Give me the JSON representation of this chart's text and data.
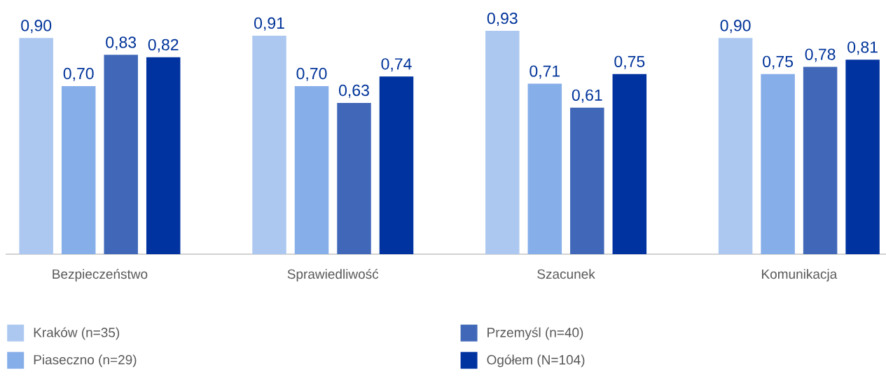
{
  "chart_data": {
    "type": "bar",
    "categories": [
      "Bezpieczeństwo",
      "Sprawiedliwość",
      "Szacunek",
      "Komunikacja"
    ],
    "series": [
      {
        "name": "Kraków (n=35)",
        "color": "#adc8f0",
        "values": [
          0.9,
          0.91,
          0.93,
          0.9
        ],
        "value_labels": [
          "0,90",
          "0,91",
          "0,93",
          "0,90"
        ]
      },
      {
        "name": "Piaseczno (n=29)",
        "color": "#86aee9",
        "values": [
          0.7,
          0.7,
          0.71,
          0.75
        ],
        "value_labels": [
          "0,70",
          "0,70",
          "0,71",
          "0,75"
        ]
      },
      {
        "name": "Przemyśl (n=40)",
        "color": "#4168b8",
        "values": [
          0.83,
          0.63,
          0.61,
          0.78
        ],
        "value_labels": [
          "0,83",
          "0,63",
          "0,61",
          "0,78"
        ]
      },
      {
        "name": "Ogółem (N=104)",
        "color": "#0033a0",
        "values": [
          0.82,
          0.74,
          0.75,
          0.81
        ],
        "value_labels": [
          "0,82",
          "0,74",
          "0,75",
          "0,81"
        ]
      }
    ],
    "legend": "bottom",
    "tick_labels": "x"
  }
}
